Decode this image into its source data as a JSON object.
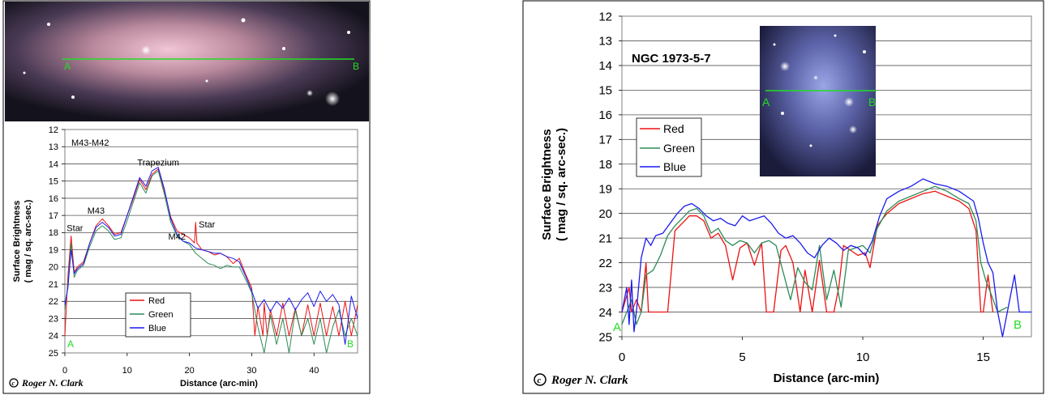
{
  "colors": {
    "red": "#ee1111",
    "green": "#2e8b57",
    "blue": "#1a1aee",
    "profile_line": "#22dd22",
    "grid": "#555555"
  },
  "chart_data": [
    {
      "type": "line",
      "title": "M43-M42",
      "xlabel": "Distance (arc-min)",
      "ylabel": "Surface Brightness",
      "ylabel2": "( mag / sq. arc-sec.)",
      "xlim": [
        0,
        47
      ],
      "ylim": [
        12,
        25
      ],
      "y_inverted": true,
      "x_ticks": [
        0,
        10,
        20,
        30,
        40
      ],
      "y_ticks": [
        12,
        13,
        14,
        15,
        16,
        17,
        18,
        19,
        20,
        21,
        22,
        23,
        24,
        25
      ],
      "grid": true,
      "legend_position": "bottom-center",
      "annotations": [
        {
          "text": "Trapezium",
          "x": 15,
          "y": 14.1
        },
        {
          "text": "M43",
          "x": 5,
          "y": 16.9
        },
        {
          "text": "Star",
          "x": 0.3,
          "y": 17.9
        },
        {
          "text": "Star",
          "x": 21.5,
          "y": 17.7
        },
        {
          "text": "M42",
          "x": 18,
          "y": 18.4
        }
      ],
      "endpoint_labels": [
        "A",
        "B"
      ],
      "image_labels": [
        "A",
        "B"
      ],
      "series": [
        {
          "name": "Red",
          "color": "#ee1111",
          "x": [
            0,
            0.5,
            1,
            1.5,
            2,
            3,
            4,
            5,
            6,
            7,
            8,
            9,
            10,
            11,
            12,
            13,
            14,
            15,
            16,
            17,
            18,
            19,
            20,
            20.8,
            21,
            21.2,
            22,
            23,
            24,
            25,
            26,
            27,
            28,
            29,
            30,
            30.5,
            31,
            31.8,
            32,
            32.5,
            33,
            34,
            35,
            36,
            37,
            38,
            39,
            40,
            41,
            42,
            43,
            44,
            45,
            46,
            47
          ],
          "y": [
            24,
            20.5,
            18.2,
            20.3,
            20,
            19.7,
            18.6,
            17.6,
            17.2,
            17.6,
            18.1,
            18,
            17,
            16,
            14.9,
            15.5,
            14.6,
            14.3,
            15.6,
            17.1,
            17.9,
            18.1,
            18.3,
            18.6,
            17.4,
            18.6,
            19,
            19.1,
            19.3,
            19.2,
            19.4,
            19.8,
            19.5,
            20.4,
            21.2,
            24,
            22.3,
            24,
            22.1,
            24,
            22.5,
            24,
            22.1,
            24,
            22.4,
            24,
            22.2,
            24,
            22.1,
            24,
            22.3,
            24,
            22,
            24,
            22.2
          ]
        },
        {
          "name": "Green",
          "color": "#2e8b57",
          "x": [
            0,
            0.5,
            1,
            1.5,
            2,
            3,
            4,
            5,
            6,
            7,
            8,
            9,
            10,
            11,
            12,
            13,
            14,
            15,
            16,
            17,
            18,
            19,
            20,
            21,
            22,
            23,
            24,
            25,
            26,
            27,
            28,
            29,
            30,
            31,
            32,
            33,
            34,
            35,
            36,
            37,
            38,
            39,
            40,
            41,
            42,
            43,
            44,
            45,
            46,
            47
          ],
          "y": [
            22.5,
            21,
            18.6,
            20.6,
            20.2,
            19.9,
            18.8,
            17.9,
            17.6,
            17.9,
            18.4,
            18.3,
            17.3,
            16.2,
            15.1,
            15.7,
            14.7,
            14.4,
            15.8,
            17.4,
            18.2,
            18.5,
            18.7,
            19.2,
            19.5,
            19.8,
            19.9,
            20.1,
            19.9,
            20,
            20,
            20.7,
            21.5,
            23.5,
            25,
            22.8,
            24.5,
            23,
            25,
            22.5,
            24,
            23,
            24.5,
            23,
            25,
            23.5,
            22.5,
            24,
            23,
            24
          ]
        },
        {
          "name": "Blue",
          "color": "#1a1aee",
          "x": [
            0,
            0.5,
            1,
            1.5,
            2,
            3,
            4,
            5,
            6,
            7,
            8,
            9,
            10,
            11,
            12,
            13,
            14,
            15,
            16,
            17,
            18,
            19,
            20,
            21,
            22,
            23,
            24,
            25,
            26,
            27,
            28,
            29,
            30,
            31,
            32,
            33,
            34,
            35,
            36,
            37,
            38,
            39,
            40,
            41,
            42,
            43,
            44,
            45,
            46,
            47
          ],
          "y": [
            22.2,
            21.2,
            19,
            20.4,
            20.1,
            19.8,
            18.6,
            17.7,
            17.4,
            17.7,
            18.2,
            18.1,
            17,
            15.9,
            14.8,
            15.3,
            14.4,
            14.2,
            15.5,
            17.2,
            18.1,
            18.5,
            18.6,
            18.9,
            19,
            19.1,
            19.2,
            19.2,
            19.4,
            19.5,
            19.7,
            20.5,
            21.4,
            22.4,
            21.9,
            22.6,
            22,
            22.4,
            21.8,
            22.5,
            21.9,
            21.5,
            22.3,
            21.4,
            22,
            21.6,
            22.2,
            24.5,
            21.7,
            23
          ]
        }
      ]
    },
    {
      "type": "line",
      "title": "NGC 1973-5-7",
      "xlabel": "Distance (arc-min)",
      "ylabel": "Surface Brightness",
      "ylabel2": "( mag / sq. arc-sec.)",
      "xlim": [
        0,
        17
      ],
      "ylim": [
        12,
        25
      ],
      "y_inverted": true,
      "x_ticks": [
        0,
        5,
        10,
        15
      ],
      "y_ticks": [
        12,
        13,
        14,
        15,
        16,
        17,
        18,
        19,
        20,
        21,
        22,
        23,
        24,
        25
      ],
      "grid": true,
      "legend_position": "top-left",
      "endpoint_labels": [
        "A",
        "B"
      ],
      "image_labels": [
        "A",
        "B"
      ],
      "series": [
        {
          "name": "Red",
          "color": "#ee1111",
          "x": [
            0,
            0.3,
            0.4,
            0.6,
            0.8,
            1.0,
            1.1,
            1.3,
            1.6,
            1.9,
            2.2,
            2.5,
            2.8,
            3.1,
            3.4,
            3.7,
            4.0,
            4.3,
            4.6,
            4.9,
            5.2,
            5.5,
            5.8,
            6.0,
            6.1,
            6.3,
            6.6,
            6.8,
            7.1,
            7.4,
            7.6,
            7.9,
            8.2,
            8.5,
            8.8,
            9.0,
            9.2,
            9.5,
            9.8,
            10.1,
            10.3,
            10.6,
            11.0,
            11.5,
            12.0,
            12.5,
            13.0,
            13.5,
            14.0,
            14.4,
            14.7,
            14.9,
            15.0,
            15.2,
            15.4
          ],
          "y": [
            24,
            23,
            24,
            23.5,
            24,
            22,
            24,
            24,
            24,
            24,
            20.7,
            20.4,
            20.1,
            20.1,
            20.3,
            21,
            20.8,
            21.3,
            22.7,
            21.4,
            21.2,
            22.1,
            21.2,
            24,
            24,
            24,
            21.5,
            21.3,
            22,
            24,
            22.3,
            24,
            21.9,
            24,
            24,
            23,
            21.3,
            21.5,
            21.7,
            21.6,
            22.2,
            20.5,
            20,
            19.6,
            19.4,
            19.2,
            19.1,
            19.3,
            19.5,
            19.8,
            20.7,
            24,
            24,
            22.5,
            24
          ]
        },
        {
          "name": "Green",
          "color": "#2e8b57",
          "x": [
            0,
            0.4,
            0.6,
            0.8,
            1.0,
            1.3,
            1.6,
            1.9,
            2.2,
            2.5,
            2.8,
            3.1,
            3.4,
            3.7,
            4.0,
            4.3,
            4.6,
            4.9,
            5.2,
            5.5,
            5.8,
            6.1,
            6.4,
            6.7,
            7.0,
            7.3,
            7.6,
            7.9,
            8.2,
            8.5,
            8.8,
            9.1,
            9.4,
            9.7,
            10.0,
            10.3,
            10.6,
            11.0,
            11.5,
            12.0,
            12.5,
            13.0,
            13.5,
            14.0,
            14.4,
            14.7,
            14.9,
            15.1,
            15.3,
            15.6,
            16.0
          ],
          "y": [
            24.5,
            23.5,
            24.5,
            24,
            22.5,
            22.3,
            21.7,
            20.9,
            20.5,
            20.2,
            19.9,
            19.8,
            20.1,
            20.8,
            20.6,
            21.1,
            21.3,
            21.1,
            21.2,
            21.6,
            21.2,
            21.1,
            21.3,
            22.4,
            23.5,
            22.2,
            22.8,
            23.1,
            21.3,
            23.5,
            22.3,
            23.8,
            21.5,
            21.4,
            21.3,
            21.6,
            20.6,
            19.9,
            19.5,
            19.3,
            19.1,
            18.9,
            19.1,
            19.4,
            19.6,
            20.3,
            22,
            22.7,
            23.2,
            24,
            23.8
          ]
        },
        {
          "name": "Blue",
          "color": "#1a1aee",
          "x": [
            0,
            0.2,
            0.3,
            0.4,
            0.5,
            0.6,
            0.8,
            1.0,
            1.2,
            1.4,
            1.7,
            2.0,
            2.3,
            2.6,
            2.9,
            3.2,
            3.5,
            3.8,
            4.1,
            4.4,
            4.7,
            5.0,
            5.3,
            5.6,
            5.9,
            6.2,
            6.5,
            6.8,
            7.1,
            7.4,
            7.7,
            8.0,
            8.3,
            8.6,
            8.9,
            9.2,
            9.5,
            9.8,
            10.1,
            10.4,
            10.7,
            11.0,
            11.5,
            12.0,
            12.5,
            13.0,
            13.5,
            14.0,
            14.3,
            14.6,
            14.8,
            15.0,
            15.2,
            15.4,
            15.6,
            15.8,
            16.0,
            16.3,
            16.5,
            17.0
          ],
          "y": [
            24,
            23,
            24.5,
            22.7,
            24.8,
            24,
            21.8,
            21,
            21.3,
            20.9,
            20.8,
            20.4,
            20,
            19.7,
            19.6,
            19.8,
            20.1,
            20.3,
            20.2,
            20.4,
            20.5,
            20.1,
            20.3,
            20.2,
            20.1,
            20.4,
            20.8,
            21,
            20.9,
            21.2,
            21.6,
            21.8,
            21.3,
            21,
            21.2,
            21.5,
            21.3,
            21.4,
            21.7,
            21.1,
            20.1,
            19.4,
            19.1,
            18.9,
            18.6,
            18.8,
            18.9,
            19.1,
            19.3,
            19.5,
            20.2,
            21.2,
            22,
            22.4,
            24,
            25,
            24,
            22.5,
            24,
            24
          ]
        }
      ]
    }
  ],
  "credit": {
    "left": "Roger N. Clark",
    "right": "Roger N. Clark"
  }
}
